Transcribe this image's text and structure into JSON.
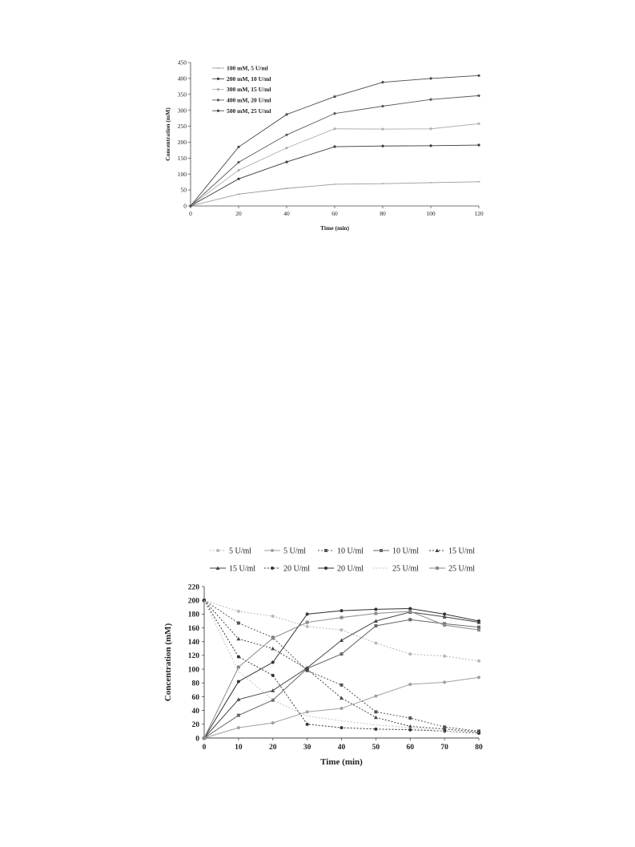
{
  "chart_data": [
    {
      "type": "line",
      "title": "",
      "xlabel": "Time (min)",
      "ylabel": "Concentration (mM)",
      "xlim": [
        0,
        120
      ],
      "ylim": [
        0,
        450
      ],
      "xticks": [
        0,
        20,
        40,
        60,
        80,
        100,
        120
      ],
      "yticks": [
        0,
        50,
        100,
        150,
        200,
        250,
        300,
        350,
        400,
        450
      ],
      "grid": false,
      "legend_position": "top-left",
      "x": [
        0,
        20,
        40,
        60,
        80,
        100,
        120
      ],
      "series": [
        {
          "name": "100 mM, 5 U/ml",
          "color": "#9a9a9a",
          "marker": "dash",
          "values": [
            0,
            37,
            55,
            68,
            70,
            73,
            76
          ]
        },
        {
          "name": "200 mM, 10 U/ml",
          "color": "#3a3a3a",
          "marker": "circle",
          "values": [
            0,
            85,
            138,
            186,
            188,
            189,
            191
          ]
        },
        {
          "name": "300 mM, 15 U/ml",
          "color": "#b0b0b0",
          "marker": "circle",
          "values": [
            0,
            112,
            182,
            242,
            241,
            242,
            258
          ]
        },
        {
          "name": "400 mM, 20 U/ml",
          "color": "#5a5a5a",
          "marker": "circle",
          "values": [
            0,
            137,
            223,
            290,
            313,
            334,
            346
          ]
        },
        {
          "name": "500 mM, 25 U/ml",
          "color": "#4a4a4a",
          "marker": "circle",
          "values": [
            0,
            185,
            287,
            343,
            388,
            400,
            409
          ]
        }
      ]
    },
    {
      "type": "line",
      "title": "",
      "xlabel": "Time (min)",
      "ylabel": "Concentration (mM)",
      "xlim": [
        0,
        80
      ],
      "ylim": [
        0,
        220
      ],
      "xticks": [
        0,
        10,
        20,
        30,
        40,
        50,
        60,
        70,
        80
      ],
      "yticks": [
        0,
        20,
        40,
        60,
        80,
        100,
        120,
        140,
        160,
        180,
        200,
        220
      ],
      "grid": false,
      "legend_position": "top",
      "x": [
        0,
        10,
        20,
        30,
        40,
        50,
        60,
        70,
        80
      ],
      "series": [
        {
          "name": "5 U/ml",
          "color": "#b8b8b8",
          "dash": "2,2",
          "marker": "circle",
          "values": [
            200,
            184,
            177,
            162,
            157,
            138,
            122,
            119,
            112
          ]
        },
        {
          "name": "5 U/ml",
          "color": "#a0a0a0",
          "dash": "",
          "marker": "circle",
          "values": [
            0,
            15,
            22,
            38,
            43,
            61,
            78,
            81,
            88
          ]
        },
        {
          "name": "10 U/ml",
          "color": "#555555",
          "dash": "2,2",
          "marker": "square",
          "values": [
            200,
            167,
            146,
            98,
            77,
            38,
            29,
            16,
            10
          ]
        },
        {
          "name": "10 U/ml",
          "color": "#666666",
          "dash": "",
          "marker": "square",
          "values": [
            0,
            33,
            55,
            101,
            122,
            163,
            172,
            166,
            161
          ]
        },
        {
          "name": "15 U/ml",
          "color": "#444444",
          "dash": "2,2",
          "marker": "triangle",
          "values": [
            200,
            144,
            130,
            100,
            58,
            30,
            17,
            13,
            9
          ]
        },
        {
          "name": "15 U/ml",
          "color": "#444444",
          "dash": "",
          "marker": "triangle",
          "values": [
            0,
            56,
            69,
            102,
            142,
            170,
            183,
            176,
            168
          ]
        },
        {
          "name": "20 U/ml",
          "color": "#333333",
          "dash": "2,2",
          "marker": "circle",
          "values": [
            200,
            118,
            91,
            20,
            15,
            13,
            12,
            10,
            7
          ]
        },
        {
          "name": "20 U/ml",
          "color": "#333333",
          "dash": "",
          "marker": "circle",
          "values": [
            0,
            82,
            110,
            180,
            185,
            187,
            188,
            180,
            170
          ]
        },
        {
          "name": "25 U/ml",
          "color": "#c4c4c4",
          "dash": "2,2",
          "marker": "none",
          "values": [
            200,
            97,
            55,
            32,
            25,
            19,
            15,
            10,
            8
          ]
        },
        {
          "name": "25 U/ml",
          "color": "#8a8a8a",
          "dash": "",
          "marker": "square",
          "values": [
            0,
            103,
            145,
            168,
            175,
            181,
            184,
            164,
            157
          ]
        }
      ]
    }
  ]
}
